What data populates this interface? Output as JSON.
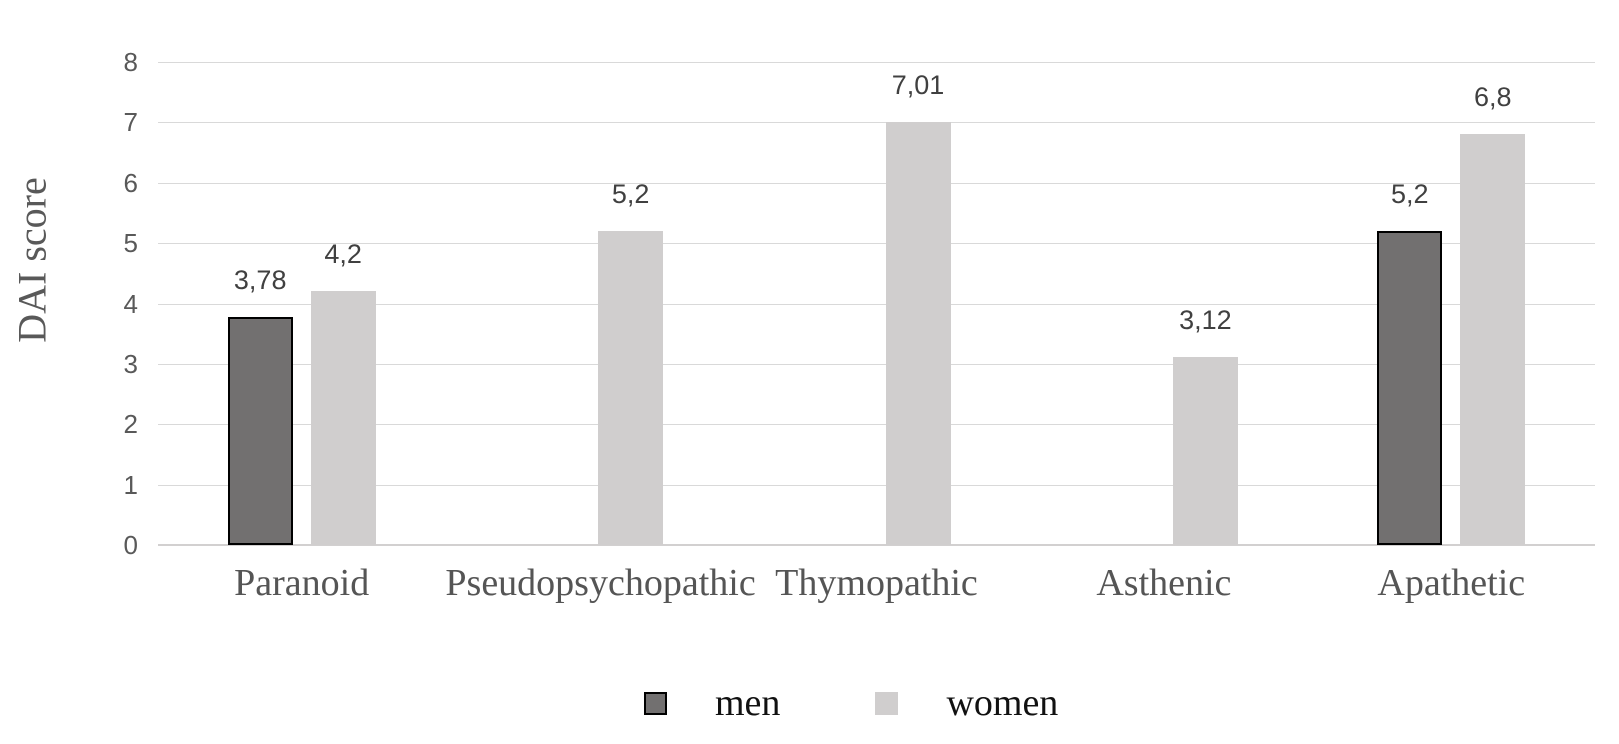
{
  "chart_data": {
    "type": "bar",
    "title": "",
    "xlabel": "",
    "ylabel": "DAI score",
    "categories": [
      "Paranoid",
      "Pseudopsychopathic",
      "Thymopathic",
      "Asthenic",
      "Apathetic"
    ],
    "series": [
      {
        "name": "men",
        "color": "#727070",
        "border": "#000000",
        "values": [
          3.78,
          null,
          null,
          null,
          5.2
        ],
        "labels": [
          "3,78",
          null,
          null,
          null,
          "5,2"
        ]
      },
      {
        "name": "women",
        "color": "#d0cece",
        "border": null,
        "values": [
          4.2,
          5.2,
          7.01,
          3.12,
          6.8
        ],
        "labels": [
          "4,2",
          "5,2",
          "7,01",
          "3,12",
          "6,8"
        ]
      }
    ],
    "ylim": [
      0,
      8
    ],
    "yticks": [
      0,
      1,
      2,
      3,
      4,
      5,
      6,
      7,
      8
    ],
    "grid": true,
    "legend_position": "bottom",
    "colors": {
      "grid": "#d9d9d9",
      "baseline": "#d2d0d0",
      "axis_text": "#595959",
      "data_label": "#404040",
      "category_text": "#555555",
      "legend_text": "#111111"
    }
  }
}
